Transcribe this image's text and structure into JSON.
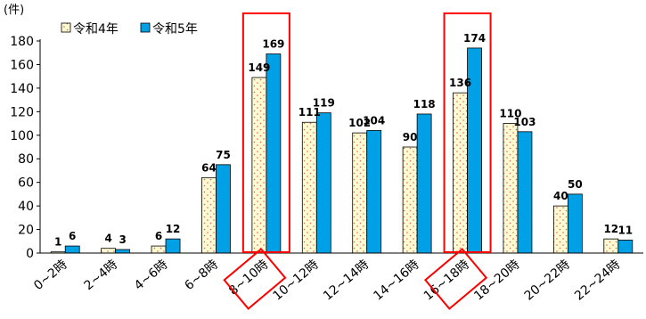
{
  "chart_data": {
    "type": "bar",
    "unit_label": "(件)",
    "categories": [
      "0~2時",
      "2~4時",
      "4~6時",
      "6~8時",
      "8~10時",
      "10~12時",
      "12~14時",
      "14~16時",
      "16~18時",
      "18~20時",
      "20~22時",
      "22~24時"
    ],
    "series": [
      {
        "name": "令和4年",
        "values": [
          1,
          4,
          6,
          64,
          149,
          111,
          102,
          90,
          136,
          110,
          40,
          12
        ],
        "color": "#fffbd0",
        "dot_color": "#e05a6a"
      },
      {
        "name": "令和5年",
        "values": [
          6,
          3,
          12,
          75,
          169,
          119,
          104,
          118,
          174,
          103,
          50,
          11
        ],
        "color": "#00a0e6"
      }
    ],
    "yticks": [
      0,
      20,
      40,
      60,
      80,
      100,
      120,
      140,
      160,
      180
    ],
    "ylim": [
      0,
      180
    ],
    "highlighted_categories": [
      "8~10時",
      "16~18時"
    ],
    "highlight_color": "#ff0000",
    "legend_position": "top-left"
  }
}
